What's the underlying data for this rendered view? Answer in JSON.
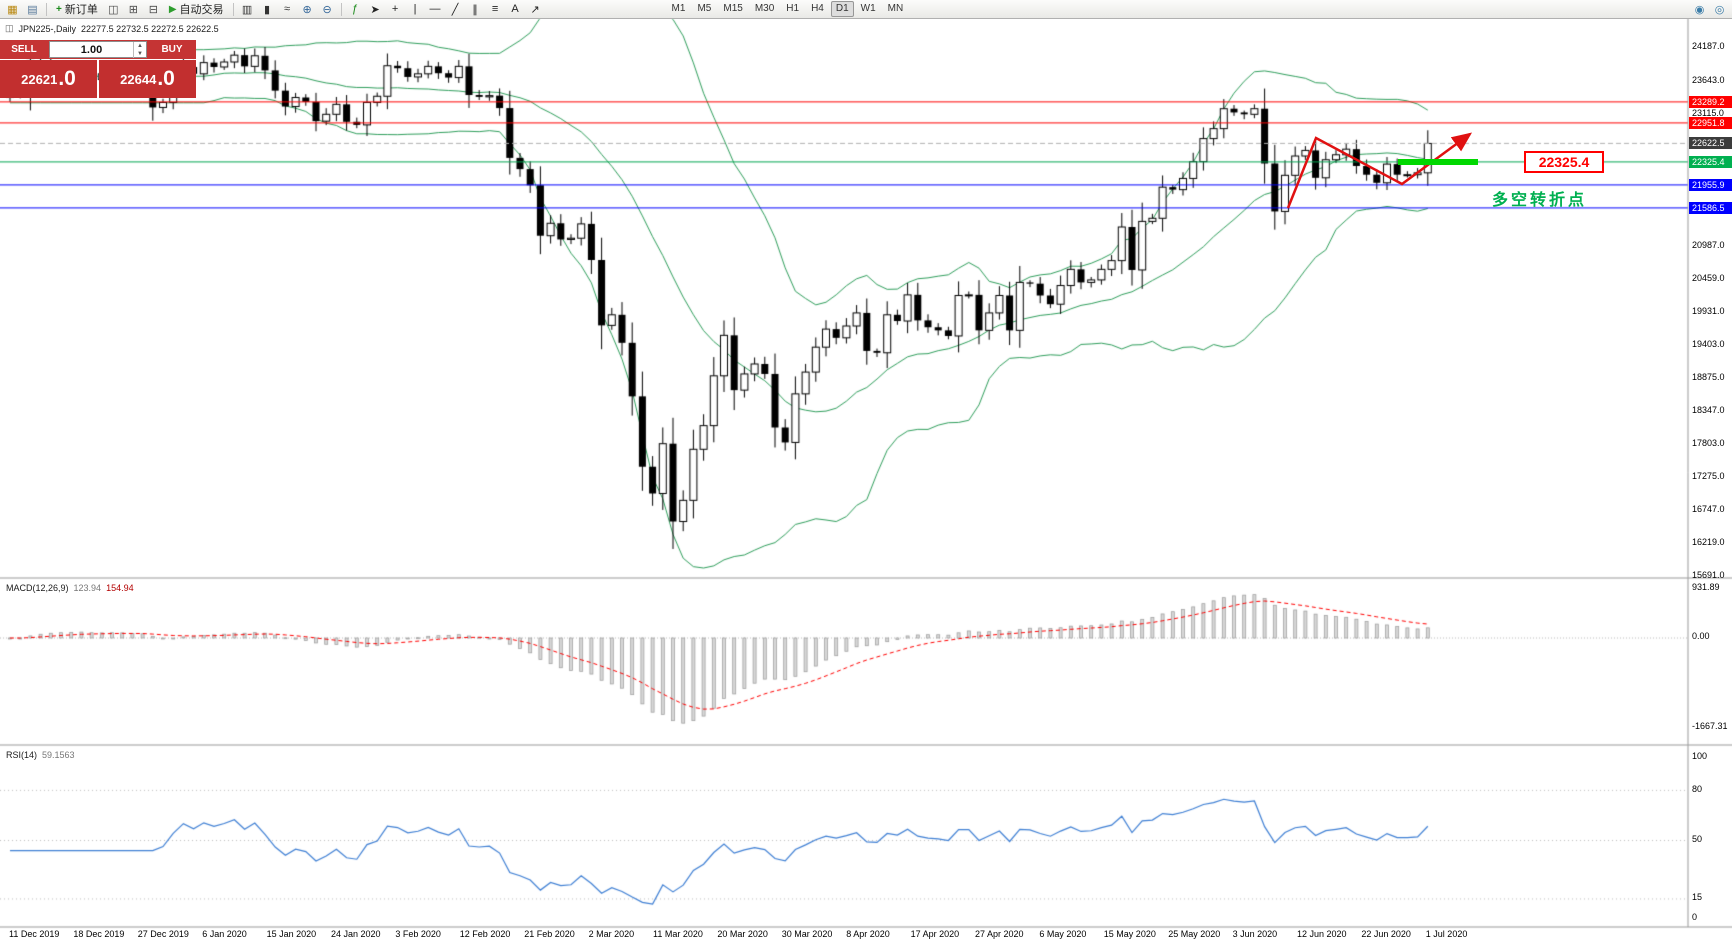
{
  "toolbar": {
    "left_icons": [
      {
        "name": "new-chart-icon",
        "glyph": "▦",
        "color": "#b8860b"
      },
      {
        "name": "profiles-icon",
        "glyph": "▤",
        "color": "#557799"
      }
    ],
    "new_order_label": "新订单",
    "new_order_icon": "+",
    "window_icons": [
      {
        "name": "chart-list-icon",
        "glyph": "◫",
        "color": "#4a4a4a"
      },
      {
        "name": "tile-windows-icon",
        "glyph": "⊞",
        "color": "#4a4a4a"
      },
      {
        "name": "cascade-windows-icon",
        "glyph": "⊟",
        "color": "#4a4a4a"
      }
    ],
    "autotrading_label": "自动交易",
    "autotrading_icon": "▶",
    "chart_type_icons": [
      {
        "name": "bar-chart-icon",
        "glyph": "▥",
        "color": "#333333"
      },
      {
        "name": "candlestick-chart-icon",
        "glyph": "▮",
        "color": "#333333"
      },
      {
        "name": "line-chart-icon",
        "glyph": "≈",
        "color": "#333333"
      }
    ],
    "zoom_icons": [
      {
        "name": "zoom-in-icon",
        "glyph": "⊕",
        "color": "#336699"
      },
      {
        "name": "zoom-out-icon",
        "glyph": "⊖",
        "color": "#336699"
      }
    ],
    "tool_icons": [
      {
        "name": "indicators-icon",
        "glyph": "ƒ",
        "color": "#1a8a1a"
      },
      {
        "name": "cursor-icon",
        "glyph": "➤",
        "color": "#222222"
      },
      {
        "name": "crosshair-icon",
        "glyph": "+",
        "color": "#222222"
      },
      {
        "name": "vertical-line-icon",
        "glyph": "|",
        "color": "#222222"
      },
      {
        "name": "horizontal-line-icon",
        "glyph": "—",
        "color": "#222222"
      },
      {
        "name": "trendline-icon",
        "glyph": "╱",
        "color": "#222222"
      },
      {
        "name": "channel-icon",
        "glyph": "∥",
        "color": "#222222"
      },
      {
        "name": "fibonacci-icon",
        "glyph": "≡",
        "color": "#222222"
      },
      {
        "name": "text-tool-icon",
        "glyph": "A",
        "color": "#222222"
      },
      {
        "name": "arrow-object-icon",
        "glyph": "↗",
        "color": "#222222"
      }
    ],
    "timeframes": [
      "M1",
      "M5",
      "M15",
      "M30",
      "H1",
      "H4",
      "D1",
      "W1",
      "MN"
    ],
    "active_timeframe": "D1",
    "right_icons": [
      {
        "name": "community-icon",
        "glyph": "◉",
        "color": "#3a7ca8"
      },
      {
        "name": "search-icon",
        "glyph": "◎",
        "color": "#3a7ca8"
      }
    ]
  },
  "chart": {
    "icon_glyph": "◫",
    "title": "JPN225-,Daily",
    "ohlc": "22277.5 22732.5 22272.5 22622.5"
  },
  "trade_panel": {
    "sell_label": "SELL",
    "buy_label": "BUY",
    "volume": "1.00",
    "up_glyph": "▲",
    "down_glyph": "▼",
    "sell_price_main": "22621",
    "sell_price_frac": ".0",
    "buy_price_main": "22644",
    "buy_price_frac": ".0"
  },
  "indicators": {
    "macd_name": "MACD(12,26,9)",
    "macd_main": "123.94",
    "macd_signal": "154.94",
    "rsi_name": "RSI(14)",
    "rsi_value": "59.1563"
  },
  "annotations": {
    "price_callout": "22325.4",
    "turning_point": "多空转折点"
  },
  "chart_data": {
    "type": "candlestick",
    "symbol": "JPN225-",
    "period": "Daily",
    "header_ohlc": {
      "open": 22277.5,
      "high": 22732.5,
      "low": 22272.5,
      "close": 22622.5
    },
    "closes": [
      23430,
      23390,
      23950,
      23930,
      23870,
      23830,
      23820,
      23840,
      23650,
      23740,
      23830,
      23780,
      23660,
      23740,
      23200,
      23280,
      23575,
      23850,
      23740,
      23920,
      23850,
      23930,
      24040,
      23860,
      24030,
      23795,
      23470,
      23215,
      23360,
      23290,
      22980,
      23090,
      23250,
      22970,
      22920,
      23280,
      23380,
      23870,
      23830,
      23690,
      23740,
      23860,
      23750,
      23680,
      23860,
      23400,
      23370,
      23390,
      23190,
      22390,
      22210,
      21950,
      21140,
      21340,
      21080,
      21100,
      21330,
      20750,
      19700,
      19870,
      19420,
      18560,
      17430,
      17000,
      17800,
      16550,
      16890,
      17710,
      18090,
      18890,
      19540,
      18660,
      18920,
      19080,
      18920,
      18060,
      17820,
      18600,
      18950,
      19350,
      19640,
      19500,
      19690,
      19900,
      19290,
      19260,
      19870,
      19770,
      20190,
      19780,
      19670,
      19620,
      19530,
      20180,
      20190,
      19620,
      19900,
      20180,
      19620,
      20390,
      20370,
      20180,
      20040,
      20340,
      20600,
      20390,
      20430,
      20600,
      20740,
      21280,
      20590,
      21370,
      21420,
      21920,
      21880,
      22060,
      22330,
      22700,
      22860,
      23180,
      23120,
      23090,
      23180,
      22300,
      21530,
      22110,
      22420,
      22510,
      22070,
      22360,
      22440,
      22530,
      22260,
      22120,
      21990,
      22290,
      22120,
      22120,
      22150,
      22622
    ],
    "bollinger": {
      "period": 20,
      "deviation": 2,
      "color": "#2E9E5B"
    },
    "levels": [
      {
        "label": "23289.2",
        "price": 23289.2,
        "color": "#FF0000",
        "badge": "#FF0000",
        "style": "solid"
      },
      {
        "label": "22951.8",
        "price": 22951.8,
        "color": "#FF0000",
        "badge": "#FF0000",
        "style": "solid"
      },
      {
        "label": "22622.5",
        "price": 22622.5,
        "color": "#B0B0B0",
        "badge": "#3C3C3C",
        "style": "dash"
      },
      {
        "label": "22325.4",
        "price": 22325.4,
        "color": "#00A651",
        "badge": "#00B050",
        "style": "solid"
      },
      {
        "label": "21955.9",
        "price": 21955.9,
        "color": "#0000FF",
        "badge": "#0000FF",
        "style": "solid"
      },
      {
        "label": "21586.5",
        "price": 21586.5,
        "color": "#0000FF",
        "badge": "#0000FF",
        "style": "solid"
      }
    ],
    "y_axis": [
      "24187.0",
      "23643.0",
      "23115.0",
      "20987.0",
      "20459.0",
      "19931.0",
      "19403.0",
      "18875.0",
      "18347.0",
      "17803.0",
      "17275.0",
      "16747.0",
      "16219.0",
      "15691.0"
    ],
    "macd_axis": [
      "931.89",
      "0.00",
      "-1667.31"
    ],
    "rsi_axis": [
      "100",
      "80",
      "50",
      "15",
      "0"
    ],
    "rsi_levels": [
      80,
      50,
      15
    ],
    "x_axis": [
      "11 Dec 2019",
      "18 Dec 2019",
      "27 Dec 2019",
      "6 Jan 2020",
      "15 Jan 2020",
      "24 Jan 2020",
      "3 Feb 2020",
      "12 Feb 2020",
      "21 Feb 2020",
      "2 Mar 2020",
      "11 Mar 2020",
      "20 Mar 2020",
      "30 Mar 2020",
      "8 Apr 2020",
      "17 Apr 2020",
      "27 Apr 2020",
      "6 May 2020",
      "15 May 2020",
      "25 May 2020",
      "3 Jun 2020",
      "12 Jun 2020",
      "22 Jun 2020",
      "1 Jul 2020"
    ]
  }
}
